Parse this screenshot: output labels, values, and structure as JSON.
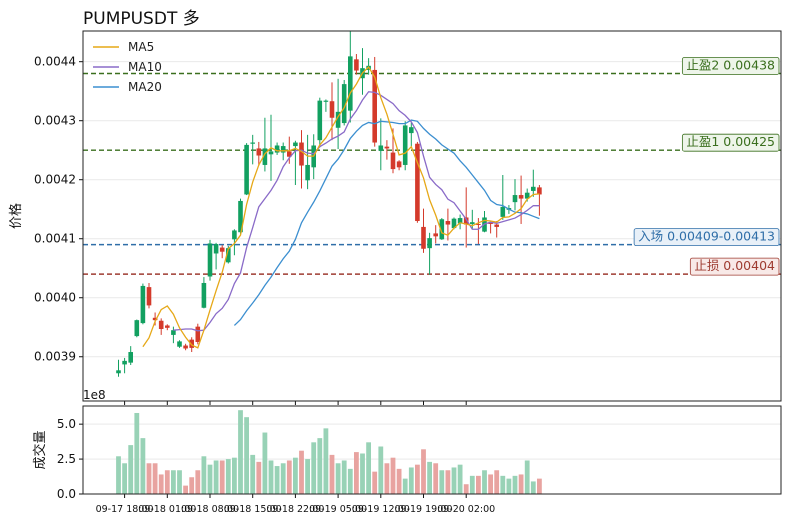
{
  "title": "PUMPUSDT  多",
  "chart_data": [
    {
      "type": "candlestick",
      "ylabel": "价格",
      "offset_text": "1e8",
      "ylim": [
        0.003825,
        0.004452
      ],
      "yticks": [
        "0.0039",
        "0.0040",
        "0.0041",
        "0.0042",
        "0.0043",
        "0.0044"
      ],
      "ytick_values": [
        0.0039,
        0.004,
        0.0041,
        0.0042,
        0.0043,
        0.0044
      ],
      "legend": {
        "placement": "top-left",
        "entries": [
          {
            "name": "MA5",
            "color": "#e6a817"
          },
          {
            "name": "MA10",
            "color": "#8a6bc8"
          },
          {
            "name": "MA20",
            "color": "#3c8fd0"
          }
        ]
      },
      "up_color": "#12a060",
      "down_color": "#d43a2b",
      "candles": [
        [
          0.003872,
          0.003877,
          0.003866,
          0.003895
        ],
        [
          0.003887,
          0.003893,
          0.003872,
          0.003898
        ],
        [
          0.00389,
          0.003908,
          0.003886,
          0.003918
        ],
        [
          0.003935,
          0.003962,
          0.003933,
          0.003963
        ],
        [
          0.003957,
          0.00402,
          0.003955,
          0.004024
        ],
        [
          0.004018,
          0.003987,
          0.003982,
          0.004025
        ],
        [
          0.003966,
          0.003962,
          0.003953,
          0.003975
        ],
        [
          0.003961,
          0.003947,
          0.003937,
          0.003965
        ],
        [
          0.003953,
          0.003949,
          0.003945,
          0.003955
        ],
        [
          0.003937,
          0.003945,
          0.003923,
          0.003951
        ],
        [
          0.003917,
          0.003926,
          0.003915,
          0.003928
        ],
        [
          0.003919,
          0.003914,
          0.003911,
          0.003922
        ],
        [
          0.003929,
          0.003915,
          0.003908,
          0.003933
        ],
        [
          0.003951,
          0.003925,
          0.003921,
          0.003956
        ],
        [
          0.003983,
          0.004025,
          0.003982,
          0.004035
        ],
        [
          0.004036,
          0.004092,
          0.004029,
          0.004098
        ],
        [
          0.004075,
          0.004091,
          0.004048,
          0.004093
        ],
        [
          0.004085,
          0.004078,
          0.004067,
          0.004089
        ],
        [
          0.00406,
          0.004084,
          0.004058,
          0.004088
        ],
        [
          0.004099,
          0.004114,
          0.004072,
          0.004116
        ],
        [
          0.004111,
          0.004164,
          0.004108,
          0.004168
        ],
        [
          0.004175,
          0.004259,
          0.004174,
          0.004262
        ],
        [
          0.004261,
          0.004263,
          0.004226,
          0.004276
        ],
        [
          0.004253,
          0.004241,
          0.004224,
          0.004264
        ],
        [
          0.004225,
          0.004253,
          0.004214,
          0.004305
        ],
        [
          0.004243,
          0.004248,
          0.004198,
          0.00431
        ],
        [
          0.004246,
          0.004258,
          0.004242,
          0.004263
        ],
        [
          0.004246,
          0.004257,
          0.004233,
          0.004263
        ],
        [
          0.004248,
          0.004239,
          0.004227,
          0.004273
        ],
        [
          0.004257,
          0.004263,
          0.004191,
          0.004266
        ],
        [
          0.004263,
          0.004224,
          0.004185,
          0.004284
        ],
        [
          0.004199,
          0.004225,
          0.004184,
          0.004276
        ],
        [
          0.004221,
          0.004258,
          0.004201,
          0.004277
        ],
        [
          0.004267,
          0.004334,
          0.004255,
          0.004339
        ],
        [
          0.004332,
          0.004334,
          0.004315,
          0.004336
        ],
        [
          0.004333,
          0.004305,
          0.004267,
          0.004365
        ],
        [
          0.004288,
          0.004315,
          0.004252,
          0.004371
        ],
        [
          0.004296,
          0.004362,
          0.004292,
          0.004369
        ],
        [
          0.004317,
          0.004409,
          0.004297,
          0.004452
        ],
        [
          0.004404,
          0.004385,
          0.004378,
          0.004413
        ],
        [
          0.004372,
          0.004389,
          0.004344,
          0.004423
        ],
        [
          0.004386,
          0.004393,
          0.004378,
          0.004406
        ],
        [
          0.004386,
          0.004263,
          0.004256,
          0.004408
        ],
        [
          0.004249,
          0.004258,
          0.004216,
          0.004304
        ],
        [
          0.004256,
          0.004253,
          0.004234,
          0.004267
        ],
        [
          0.004246,
          0.004218,
          0.004211,
          0.004287
        ],
        [
          0.004231,
          0.004221,
          0.004216,
          0.004233
        ],
        [
          0.004225,
          0.004292,
          0.004216,
          0.004299
        ],
        [
          0.004279,
          0.004289,
          0.004257,
          0.004297
        ],
        [
          0.004261,
          0.00413,
          0.004127,
          0.004264
        ],
        [
          0.00412,
          0.004083,
          0.004076,
          0.004151
        ],
        [
          0.004084,
          0.004101,
          0.004039,
          0.00411
        ],
        [
          0.004109,
          0.004104,
          0.004092,
          0.004123
        ],
        [
          0.004099,
          0.004133,
          0.004098,
          0.004135
        ],
        [
          0.00413,
          0.004124,
          0.004097,
          0.004151
        ],
        [
          0.004118,
          0.004134,
          0.004116,
          0.004136
        ],
        [
          0.004126,
          0.004135,
          0.004116,
          0.004141
        ],
        [
          0.004136,
          0.004124,
          0.004085,
          0.004187
        ],
        [
          0.004125,
          0.004128,
          0.004116,
          0.004149
        ],
        [
          0.004125,
          0.004124,
          0.004091,
          0.004135
        ],
        [
          0.004112,
          0.004136,
          0.004111,
          0.004147
        ],
        [
          0.004127,
          0.004125,
          0.004109,
          0.004128
        ],
        [
          0.004124,
          0.00412,
          0.004102,
          0.00413
        ],
        [
          0.004137,
          0.004154,
          0.004132,
          0.004208
        ],
        [
          0.004149,
          0.004152,
          0.004142,
          0.004157
        ],
        [
          0.004162,
          0.004174,
          0.004148,
          0.004201
        ],
        [
          0.004174,
          0.004168,
          0.004125,
          0.004207
        ],
        [
          0.004168,
          0.004178,
          0.004163,
          0.004185
        ],
        [
          0.004181,
          0.004188,
          0.004171,
          0.004217
        ],
        [
          0.004187,
          0.004175,
          0.004139,
          0.004191
        ]
      ],
      "ma5": [
        null,
        null,
        null,
        null,
        0.003917,
        0.003932,
        0.00396,
        0.00398,
        0.003986,
        0.003972,
        0.003949,
        0.003933,
        0.00392,
        0.003915,
        0.003945,
        0.003979,
        0.004012,
        0.004043,
        0.004083,
        0.004092,
        0.004106,
        0.004158,
        0.004196,
        0.004225,
        0.004244,
        0.004254,
        0.004249,
        0.004249,
        0.004249,
        0.004253,
        0.004248,
        0.00424,
        0.00424,
        0.004259,
        0.004271,
        0.004289,
        0.004307,
        0.004322,
        0.004347,
        0.004362,
        0.004381,
        0.004391,
        0.004374,
        0.004339,
        0.004311,
        0.004277,
        0.004242,
        0.004245,
        0.004256,
        0.004229,
        0.004203,
        0.004166,
        0.00414,
        0.00411,
        0.004106,
        0.004118,
        0.004127,
        0.004125,
        0.004122,
        0.004127,
        0.004131,
        0.00413,
        0.004128,
        0.004136,
        0.004137,
        0.004143,
        0.004151,
        0.004167,
        0.004175,
        0.004176
      ],
      "ma10": [
        null,
        null,
        null,
        null,
        null,
        null,
        null,
        null,
        null,
        0.003945,
        0.003946,
        0.003947,
        0.003947,
        0.003944,
        0.003945,
        0.003958,
        0.003973,
        0.003982,
        0.003997,
        0.004024,
        0.004042,
        0.004085,
        0.004119,
        0.004154,
        0.004168,
        0.004182,
        0.004199,
        0.004222,
        0.004237,
        0.004249,
        0.00425,
        0.004245,
        0.004244,
        0.004256,
        0.004262,
        0.004269,
        0.004274,
        0.004281,
        0.004303,
        0.004317,
        0.004335,
        0.004349,
        0.004348,
        0.004343,
        0.004336,
        0.004329,
        0.004317,
        0.004309,
        0.004298,
        0.00428,
        0.00424,
        0.004204,
        0.004192,
        0.004183,
        0.004167,
        0.004161,
        0.004147,
        0.004133,
        0.004116,
        0.004116,
        0.004125,
        0.004128,
        0.004126,
        0.004129,
        0.004132,
        0.004135,
        0.004141,
        0.004148,
        0.004156,
        0.004156
      ],
      "ma20": [
        null,
        null,
        null,
        null,
        null,
        null,
        null,
        null,
        null,
        null,
        null,
        null,
        null,
        null,
        null,
        null,
        null,
        null,
        null,
        0.003953,
        0.003963,
        0.003978,
        0.003991,
        0.004005,
        0.004021,
        0.004035,
        0.004051,
        0.004066,
        0.004079,
        0.004099,
        0.004127,
        0.004145,
        0.004162,
        0.004181,
        0.004202,
        0.004223,
        0.004235,
        0.004251,
        0.00427,
        0.004282,
        0.004292,
        0.004297,
        0.004295,
        0.004299,
        0.004298,
        0.004297,
        0.004295,
        0.004295,
        0.004301,
        0.004299,
        0.004287,
        0.004277,
        0.004269,
        0.004259,
        0.004252,
        0.004245,
        0.004232,
        0.004221,
        0.004208,
        0.004195,
        0.004182,
        0.004165,
        0.004158,
        0.004156,
        0.00415,
        0.004145,
        0.004144,
        0.004142,
        0.004138,
        0.004134
      ],
      "hlines": [
        {
          "label": "止盈2 0.00438",
          "value": 0.00438,
          "color": "#3a6f1e",
          "box_fill": "#eef5ea"
        },
        {
          "label": "止盈1 0.00425",
          "value": 0.00425,
          "color": "#3a6f1e",
          "box_fill": "#eef5ea"
        },
        {
          "label": "入场 0.00409-0.00413",
          "value": 0.00409,
          "color": "#2f6ea8",
          "box_fill": "#e8f0f8"
        },
        {
          "label": "止损 0.00404",
          "value": 0.00404,
          "color": "#9e3b30",
          "box_fill": "#f8e9e7"
        }
      ]
    },
    {
      "type": "bar",
      "ylabel": "成交量",
      "ylim": [
        0,
        6.3
      ],
      "yticks": [
        "0.0",
        "2.5",
        "5.0"
      ],
      "ytick_values": [
        0,
        2.5,
        5
      ],
      "up_color": "#98d2b6",
      "down_color": "#e8a3a0",
      "x_tick_labels": [
        "09-17 18:00",
        "09-18 01:00",
        "09-18 08:00",
        "09-18 15:00",
        "09-18 22:00",
        "09-19 05:00",
        "09-19 12:00",
        "09-19 19:00",
        "09-20 02:00"
      ],
      "x_tick_candle_index": [
        1,
        8,
        15,
        22,
        29,
        36,
        43,
        50,
        57
      ],
      "volumes": [
        2.7,
        2.2,
        3.5,
        5.8,
        4.0,
        2.2,
        2.2,
        1.4,
        1.7,
        1.7,
        1.7,
        0.6,
        1.2,
        1.7,
        2.7,
        2.1,
        2.4,
        2.4,
        2.5,
        2.6,
        6.0,
        5.5,
        2.8,
        2.3,
        4.4,
        2.4,
        2.0,
        2.2,
        2.4,
        2.6,
        3.1,
        2.5,
        3.7,
        4.0,
        4.7,
        2.8,
        2.2,
        2.4,
        1.8,
        3.0,
        2.9,
        3.7,
        1.6,
        3.4,
        2.2,
        2.6,
        1.8,
        1.1,
        1.9,
        2.1,
        3.2,
        2.3,
        2.2,
        1.7,
        1.7,
        1.9,
        2.1,
        0.7,
        1.3,
        1.3,
        1.7,
        1.4,
        1.7,
        1.3,
        1.1,
        1.3,
        1.4,
        2.4,
        0.9,
        1.1
      ]
    }
  ]
}
